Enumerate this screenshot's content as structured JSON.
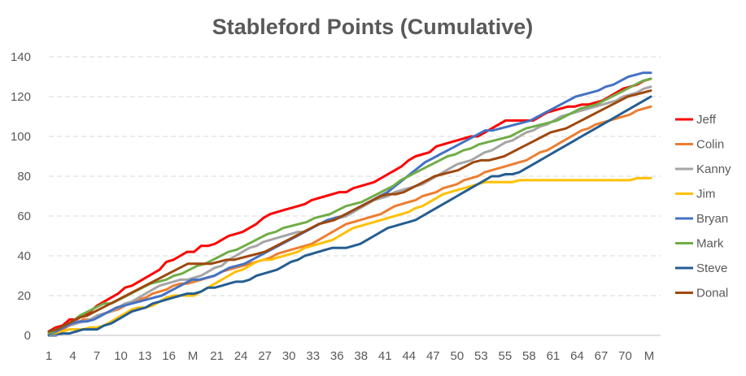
{
  "chart_data": {
    "type": "line",
    "title": "Stableford Points (Cumulative)",
    "xlabel": "",
    "ylabel": "",
    "ylim": [
      0,
      140
    ],
    "y_ticks": [
      0,
      20,
      40,
      60,
      80,
      100,
      120,
      140
    ],
    "grid": true,
    "legend": "right",
    "x_tick_labels": [
      "1",
      "4",
      "7",
      "10",
      "13",
      "16",
      "M",
      "21",
      "24",
      "27",
      "30",
      "33",
      "36",
      "38",
      "41",
      "44",
      "47",
      "50",
      "53",
      "55",
      "58",
      "61",
      "64",
      "67",
      "70",
      "M"
    ],
    "series": [
      {
        "name": "Jeff",
        "color": "#ff0000",
        "values": [
          2,
          4,
          5,
          8,
          8,
          10,
          12,
          15,
          17,
          19,
          21,
          24,
          25,
          27,
          29,
          31,
          33,
          37,
          38,
          40,
          42,
          42,
          45,
          45,
          46,
          48,
          50,
          51,
          52,
          54,
          56,
          59,
          61,
          62,
          63,
          64,
          65,
          66,
          68,
          69,
          70,
          71,
          72,
          72,
          74,
          75,
          76,
          77,
          79,
          81,
          83,
          85,
          88,
          90,
          91,
          92,
          95,
          96,
          97,
          98,
          99,
          100,
          100,
          102,
          104,
          106,
          108,
          108,
          108,
          108,
          108,
          110,
          112,
          113,
          114,
          115,
          115,
          116,
          116,
          117,
          118,
          120,
          122,
          124,
          125,
          126,
          128,
          129
        ]
      },
      {
        "name": "Colin",
        "color": "#ed7d31",
        "values": [
          1,
          2,
          3,
          5,
          6,
          8,
          8,
          10,
          11,
          12,
          13,
          15,
          17,
          18,
          19,
          21,
          22,
          23,
          25,
          26,
          26,
          27,
          28,
          29,
          30,
          32,
          33,
          34,
          35,
          36,
          37,
          38,
          39,
          41,
          42,
          43,
          44,
          45,
          46,
          48,
          50,
          52,
          54,
          56,
          57,
          58,
          59,
          60,
          61,
          63,
          65,
          66,
          67,
          68,
          70,
          71,
          72,
          74,
          75,
          76,
          78,
          79,
          80,
          82,
          83,
          84,
          85,
          86,
          87,
          88,
          90,
          92,
          93,
          95,
          97,
          99,
          101,
          103,
          104,
          106,
          107,
          108,
          109,
          110,
          111,
          113,
          114,
          115
        ]
      },
      {
        "name": "Kanny",
        "color": "#a5a5a5",
        "values": [
          1,
          3,
          4,
          5,
          6,
          7,
          8,
          10,
          11,
          12,
          14,
          16,
          17,
          19,
          21,
          23,
          25,
          26,
          27,
          28,
          28,
          29,
          30,
          32,
          34,
          35,
          38,
          40,
          42,
          44,
          45,
          47,
          48,
          49,
          50,
          51,
          52,
          52,
          54,
          56,
          57,
          58,
          59,
          60,
          62,
          64,
          66,
          68,
          69,
          70,
          72,
          73,
          74,
          75,
          76,
          78,
          80,
          82,
          84,
          86,
          87,
          88,
          90,
          92,
          93,
          95,
          97,
          98,
          100,
          102,
          103,
          105,
          106,
          108,
          110,
          111,
          112,
          113,
          114,
          115,
          116,
          117,
          118,
          120,
          121,
          122,
          124,
          125
        ]
      },
      {
        "name": "Jim",
        "color": "#ffc000",
        "values": [
          1,
          1,
          2,
          3,
          3,
          3,
          4,
          4,
          5,
          7,
          9,
          11,
          13,
          14,
          14,
          15,
          17,
          19,
          20,
          20,
          20,
          20,
          22,
          24,
          26,
          28,
          30,
          32,
          33,
          35,
          37,
          38,
          38,
          39,
          40,
          41,
          42,
          44,
          45,
          46,
          47,
          48,
          50,
          52,
          54,
          55,
          56,
          57,
          58,
          59,
          60,
          61,
          62,
          64,
          65,
          67,
          69,
          71,
          72,
          73,
          74,
          75,
          76,
          77,
          77,
          77,
          77,
          77,
          78,
          78,
          78,
          78,
          78,
          78,
          78,
          78,
          78,
          78,
          78,
          78,
          78,
          78,
          78,
          78,
          78,
          79,
          79,
          79
        ]
      },
      {
        "name": "Bryan",
        "color": "#4472c4",
        "values": [
          1,
          2,
          4,
          6,
          7,
          7,
          8,
          10,
          12,
          14,
          15,
          16,
          17,
          18,
          19,
          20,
          22,
          24,
          26,
          28,
          28,
          29,
          30,
          32,
          34,
          35,
          36,
          38,
          40,
          42,
          44,
          46,
          48,
          50,
          52,
          54,
          56,
          58,
          59,
          60,
          62,
          64,
          66,
          68,
          70,
          72,
          75,
          78,
          81,
          84,
          87,
          89,
          91,
          93,
          95,
          97,
          99,
          101,
          103,
          103,
          104,
          105,
          106,
          107,
          108,
          110,
          112,
          114,
          116,
          118,
          120,
          121,
          122,
          123,
          125,
          126,
          128,
          130,
          131,
          132,
          132
        ]
      },
      {
        "name": "Mark",
        "color": "#70ad47",
        "values": [
          1,
          3,
          5,
          7,
          10,
          12,
          14,
          16,
          16,
          18,
          20,
          22,
          24,
          26,
          27,
          28,
          30,
          31,
          33,
          35,
          36,
          38,
          40,
          42,
          43,
          45,
          47,
          49,
          51,
          52,
          54,
          55,
          56,
          57,
          59,
          60,
          61,
          63,
          65,
          66,
          67,
          69,
          71,
          73,
          75,
          78,
          80,
          82,
          84,
          86,
          88,
          90,
          91,
          93,
          94,
          96,
          97,
          98,
          99,
          100,
          102,
          104,
          105,
          106,
          107,
          108,
          110,
          112,
          114,
          115,
          116,
          118,
          120,
          122,
          124,
          126,
          128,
          129
        ]
      },
      {
        "name": "Steve",
        "color": "#255e91",
        "values": [
          0,
          0,
          1,
          1,
          2,
          3,
          3,
          3,
          5,
          6,
          8,
          10,
          12,
          13,
          14,
          16,
          17,
          18,
          19,
          20,
          21,
          21,
          22,
          24,
          24,
          25,
          26,
          27,
          27,
          28,
          30,
          31,
          32,
          33,
          35,
          37,
          38,
          40,
          41,
          42,
          43,
          44,
          44,
          44,
          45,
          46,
          48,
          50,
          52,
          54,
          55,
          56,
          57,
          58,
          60,
          62,
          64,
          66,
          68,
          70,
          72,
          74,
          76,
          78,
          80,
          80,
          81,
          81,
          82,
          84,
          86,
          88,
          90,
          92,
          94,
          96,
          98,
          100,
          102,
          104,
          106,
          108,
          110,
          112,
          114,
          116,
          118,
          120
        ]
      },
      {
        "name": "Donal",
        "color": "#9e480e",
        "values": [
          2,
          3,
          5,
          7,
          9,
          10,
          12,
          14,
          16,
          18,
          20,
          22,
          24,
          26,
          28,
          30,
          32,
          34,
          36,
          36,
          36,
          36,
          37,
          38,
          38,
          39,
          40,
          41,
          42,
          44,
          46,
          48,
          50,
          52,
          54,
          56,
          57,
          58,
          60,
          62,
          64,
          66,
          68,
          70,
          71,
          71,
          72,
          74,
          76,
          78,
          80,
          81,
          82,
          83,
          85,
          87,
          88,
          88,
          89,
          90,
          92,
          94,
          96,
          98,
          100,
          102,
          103,
          104,
          106,
          108,
          110,
          112,
          114,
          116,
          118,
          120,
          121,
          122,
          123
        ]
      }
    ]
  }
}
